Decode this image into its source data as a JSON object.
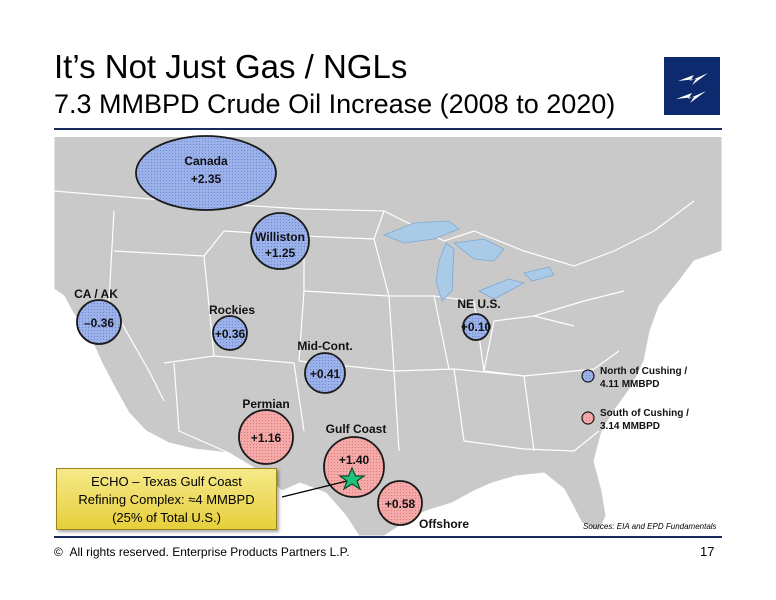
{
  "title": "It’s Not Just Gas / NGLs",
  "subtitle": "7.3 MMBPD Crude Oil Increase (2008 to 2020)",
  "colors": {
    "north": "#9ab0e8",
    "south": "#f4a6a6",
    "water": "#a9cbe8",
    "land": "#c8c8c8",
    "accent": "#1b2a5c"
  },
  "regions": [
    {
      "name": "Canada",
      "value": "+2.35",
      "group": "north"
    },
    {
      "name": "Williston",
      "value": "+1.25",
      "group": "north"
    },
    {
      "name": "CA / AK",
      "value": "–0.36",
      "group": "north"
    },
    {
      "name": "Rockies",
      "value": "+0.36",
      "group": "north"
    },
    {
      "name": "Mid-Cont.",
      "value": "+0.41",
      "group": "north"
    },
    {
      "name": "NE U.S.",
      "value": "+0.10",
      "group": "north"
    },
    {
      "name": "Permian",
      "value": "+1.16",
      "group": "south"
    },
    {
      "name": "Gulf Coast",
      "value": "+1.40",
      "group": "south"
    },
    {
      "name": "Offshore",
      "value": "+0.58",
      "group": "south"
    }
  ],
  "legend": [
    {
      "line1": "North of Cushing /",
      "line2": "4.11 MMBPD",
      "group": "north"
    },
    {
      "line1": "South of Cushing /",
      "line2": "3.14 MMBPD",
      "group": "south"
    }
  ],
  "echo": {
    "line1": "ECHO – Texas Gulf Coast",
    "line2": "Refining Complex:  ≈4 MMBPD",
    "line3": "(25% of Total U.S.)"
  },
  "sources": "Sources:  EIA and EPD Fundamentals",
  "footer": "All rights reserved. Enterprise Products Partners L.P.",
  "copyright_symbol": "©",
  "page_number": "17"
}
